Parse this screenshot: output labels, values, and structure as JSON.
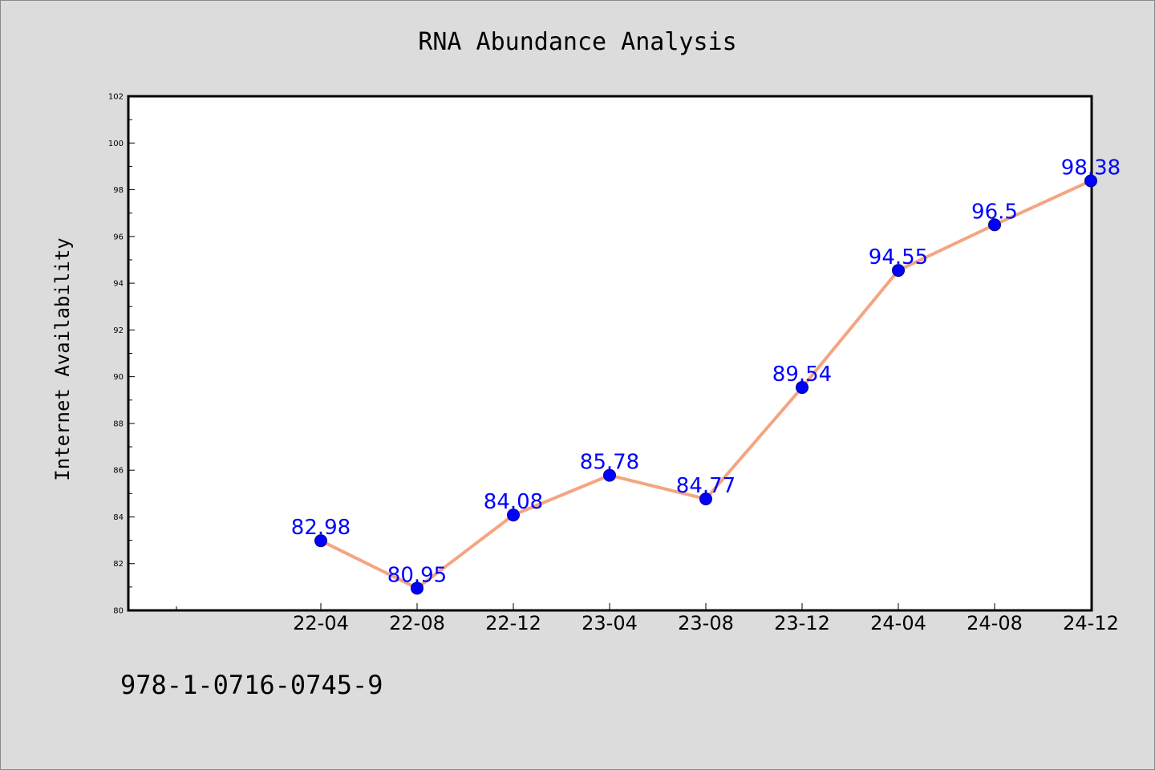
{
  "chart_data": {
    "type": "line",
    "title": "RNA Abundance Analysis",
    "xlabel": "",
    "ylabel": "Internet Availability",
    "categories": [
      "22-04",
      "22-08",
      "22-12",
      "23-04",
      "23-08",
      "23-12",
      "24-04",
      "24-08",
      "24-12"
    ],
    "series": [
      {
        "values": [
          82.98,
          80.95,
          84.08,
          85.78,
          84.77,
          89.54,
          94.55,
          96.5,
          98.38
        ],
        "data_labels": [
          "82.98",
          "80.95",
          "84.08",
          "85.78",
          "84.77",
          "89.54",
          "94.55",
          "96.5",
          "98.38"
        ],
        "line_color": "#f4a582",
        "marker_color": "#0000ff"
      }
    ],
    "ylim": [
      80,
      102
    ],
    "yticks": [
      "80",
      "82",
      "84",
      "86",
      "88",
      "90",
      "92",
      "94",
      "96",
      "98",
      "100",
      "102"
    ],
    "grid": false,
    "legend": "none"
  },
  "footer": {
    "isbn": "978-1-0716-0745-9"
  }
}
